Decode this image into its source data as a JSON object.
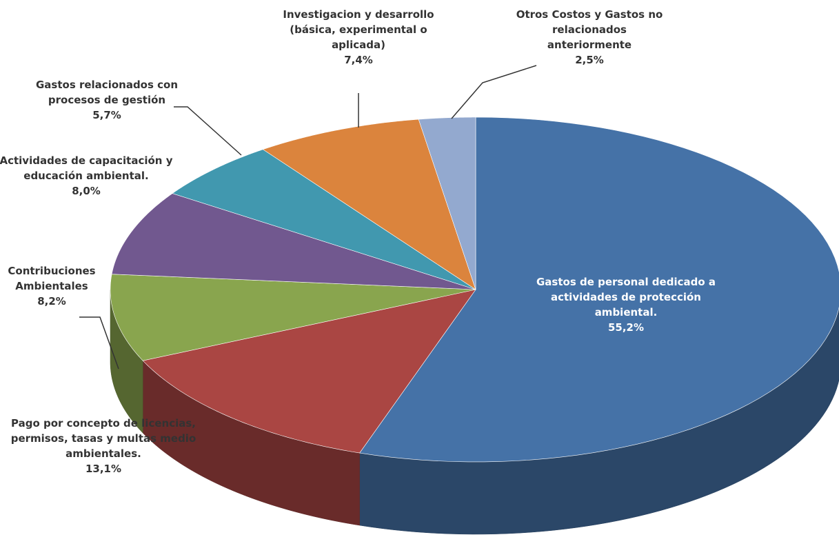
{
  "chart_data": {
    "type": "pie3d",
    "categories": [
      "Gastos de personal dedicado a actividades de protección ambiental.",
      "Pago por concepto de licencias, permisos, tasas y multas medio ambientales.",
      "Contribuciones Ambientales",
      "Actividades de capacitación y educación ambiental.",
      "Gastos relacionados con procesos de gestión",
      "Investigacion y desarrollo (básica, experimental o aplicada)",
      "Otros Costos y Gastos no relacionados anteriormente"
    ],
    "values": [
      55.2,
      13.1,
      8.2,
      8.0,
      5.7,
      7.4,
      2.5
    ],
    "value_labels": [
      "55,2%",
      "13,1%",
      "8,2%",
      "8,0%",
      "5,7%",
      "7,4%",
      "2,5%"
    ],
    "colors": [
      "#4572a7",
      "#aa4643",
      "#89a54e",
      "#71588f",
      "#4198af",
      "#db843d",
      "#93a9cf"
    ]
  }
}
